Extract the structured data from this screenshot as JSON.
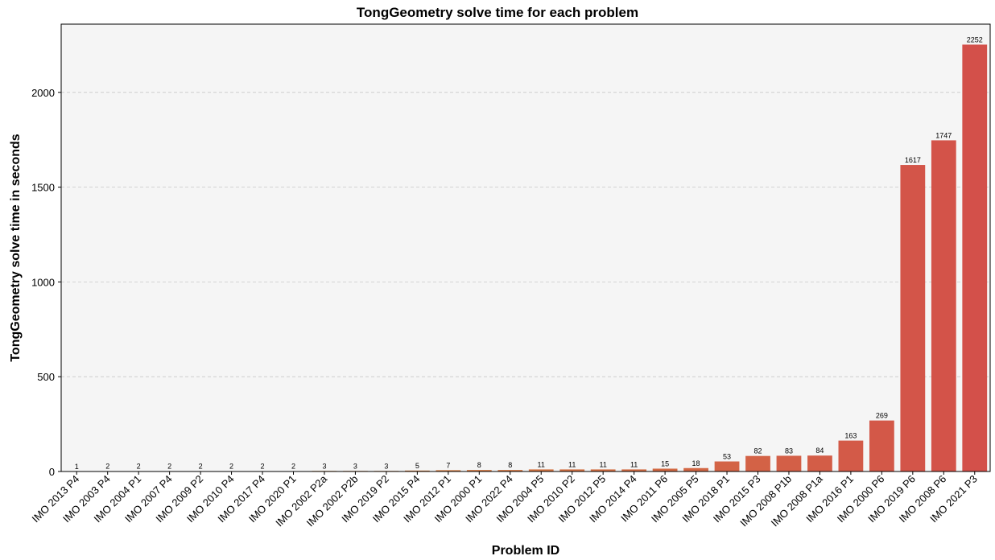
{
  "chart_data": {
    "type": "bar",
    "title": "TongGeometry solve time for each problem",
    "xlabel": "Problem ID",
    "ylabel": "TongGeometry solve time in seconds",
    "ylim": [
      0,
      2360
    ],
    "yticks": [
      0,
      500,
      1000,
      1500,
      2000
    ],
    "grid": "horizontal dashed",
    "categories": [
      "IMO 2013 P4",
      "IMO 2003 P4",
      "IMO 2004 P1",
      "IMO 2007 P4",
      "IMO 2009 P2",
      "IMO 2010 P4",
      "IMO 2017 P4",
      "IMO 2020 P1",
      "IMO 2002 P2a",
      "IMO 2002 P2b",
      "IMO 2019 P2",
      "IMO 2015 P4",
      "IMO 2012 P1",
      "IMO 2000 P1",
      "IMO 2022 P4",
      "IMO 2004 P5",
      "IMO 2010 P2",
      "IMO 2012 P5",
      "IMO 2014 P4",
      "IMO 2011 P6",
      "IMO 2005 P5",
      "IMO 2018 P1",
      "IMO 2015 P3",
      "IMO 2008 P1b",
      "IMO 2008 P1a",
      "IMO 2016 P1",
      "IMO 2000 P6",
      "IMO 2019 P6",
      "IMO 2008 P6",
      "IMO 2021 P3"
    ],
    "values": [
      1,
      2,
      2,
      2,
      2,
      2,
      2,
      2,
      3,
      3,
      3,
      5,
      7,
      8,
      8,
      11,
      11,
      11,
      11,
      15,
      18,
      53,
      82,
      83,
      84,
      163,
      269,
      1617,
      1747,
      2252
    ],
    "colors": {
      "background": "#f5f5f5",
      "grid": "#c8c8c8",
      "bar_start": "#d49a3a",
      "bar_end": "#d3504a"
    }
  }
}
